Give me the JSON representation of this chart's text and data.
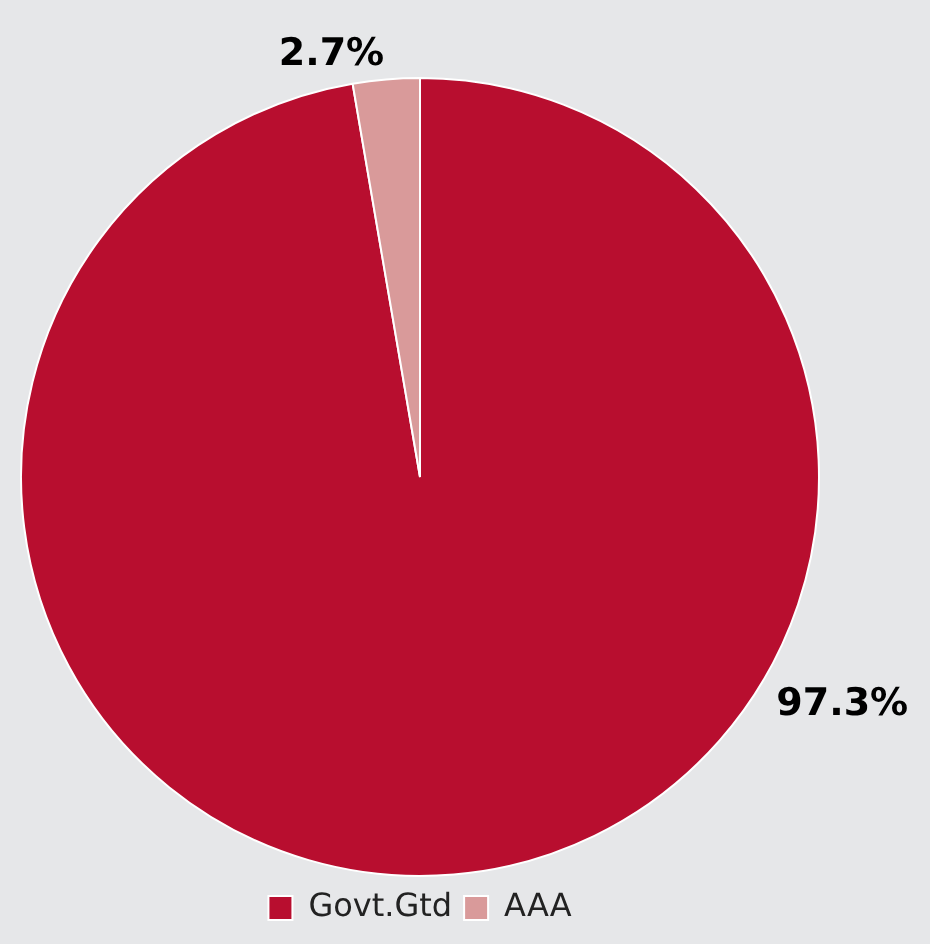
{
  "chart_data": {
    "type": "pie",
    "categories": [
      "Govt.Gtd",
      "AAA"
    ],
    "values": [
      97.3,
      2.7
    ],
    "colors": [
      "#b80e2f",
      "#d99a9a"
    ],
    "value_labels": [
      "97.3%",
      "2.7%"
    ],
    "legend": "bottom"
  }
}
